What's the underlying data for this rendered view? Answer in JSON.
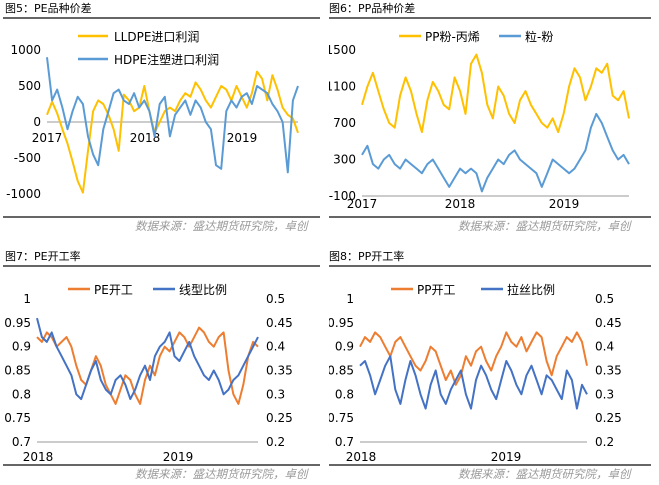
{
  "source_text": "数据来源：盛达期货研究院，卓创",
  "charts": [
    {
      "title": "图5：PE品种价差",
      "chart_data": {
        "type": "line",
        "xticks": [
          "2017",
          "2018",
          "2019"
        ],
        "ylim": [
          -1000,
          1000
        ],
        "yticks": [
          "1000",
          "500",
          "0",
          "-500",
          "-1000"
        ],
        "legend_position": "top",
        "series": [
          {
            "name": "LLDPE进口利润",
            "color": "#FFC000",
            "values": [
              100,
              280,
              120,
              -100,
              -300,
              -550,
              -820,
              -980,
              -400,
              150,
              300,
              250,
              100,
              -100,
              -400,
              380,
              300,
              150,
              200,
              500,
              150,
              -150,
              0,
              150,
              200,
              150,
              300,
              400,
              350,
              550,
              450,
              300,
              200,
              350,
              500,
              450,
              300,
              500,
              350,
              200,
              400,
              700,
              600,
              300,
              650,
              450,
              200,
              100,
              50,
              -150
            ]
          },
          {
            "name": "HDPE注塑进口利润",
            "color": "#5B9BD5",
            "values": [
              900,
              300,
              450,
              200,
              -100,
              150,
              350,
              250,
              -200,
              -450,
              -600,
              -100,
              150,
              400,
              450,
              300,
              250,
              400,
              200,
              300,
              150,
              -200,
              250,
              350,
              -200,
              100,
              200,
              300,
              100,
              300,
              200,
              0,
              -100,
              -600,
              -650,
              150,
              300,
              200,
              350,
              400,
              250,
              500,
              450,
              400,
              250,
              150,
              0,
              -700,
              300,
              500
            ]
          }
        ]
      }
    },
    {
      "title": "图6：PP品种价差",
      "chart_data": {
        "type": "line",
        "xticks": [
          "2017",
          "2018",
          "2019"
        ],
        "ylim": [
          -100,
          1500
        ],
        "yticks": [
          "1500",
          "1100",
          "700",
          "300",
          "-100"
        ],
        "legend_position": "top",
        "series": [
          {
            "name": "PP粉-丙烯",
            "color": "#FFC000",
            "values": [
              900,
              1100,
              1250,
              1050,
              850,
              700,
              650,
              1000,
              1200,
              1050,
              800,
              600,
              950,
              1150,
              1050,
              900,
              850,
              1200,
              1050,
              800,
              1350,
              1450,
              1250,
              900,
              750,
              1100,
              1000,
              800,
              700,
              950,
              1050,
              900,
              800,
              700,
              650,
              750,
              600,
              800,
              1100,
              1300,
              1200,
              950,
              1100,
              1300,
              1250,
              1350,
              1000,
              950,
              1050,
              750
            ]
          },
          {
            "name": "粒-粉",
            "color": "#5B9BD5",
            "values": [
              350,
              450,
              250,
              200,
              300,
              350,
              250,
              200,
              300,
              250,
              200,
              150,
              250,
              300,
              200,
              100,
              0,
              100,
              200,
              150,
              200,
              150,
              -50,
              100,
              200,
              300,
              250,
              350,
              400,
              300,
              250,
              200,
              150,
              0,
              150,
              300,
              250,
              200,
              150,
              200,
              300,
              400,
              650,
              800,
              700,
              550,
              400,
              300,
              350,
              250
            ]
          }
        ]
      }
    },
    {
      "title": "图7：PE开工率",
      "chart_data": {
        "type": "line",
        "xticks": [
          "2018",
          "2019"
        ],
        "ylim": [
          0.7,
          1
        ],
        "yticks": [
          "1",
          "0.95",
          "0.9",
          "0.85",
          "0.8",
          "0.75",
          "0.7"
        ],
        "ylim_right": [
          0.2,
          0.5
        ],
        "yticks_right": [
          "0.5",
          "0.45",
          "0.4",
          "0.35",
          "0.3",
          "0.25",
          "0.2"
        ],
        "legend_position": "top",
        "series": [
          {
            "name": "PE开工",
            "color": "#ED7D31",
            "axis": "left",
            "values": [
              0.92,
              0.91,
              0.93,
              0.92,
              0.9,
              0.91,
              0.92,
              0.9,
              0.86,
              0.83,
              0.82,
              0.85,
              0.88,
              0.86,
              0.82,
              0.8,
              0.78,
              0.81,
              0.84,
              0.83,
              0.8,
              0.78,
              0.83,
              0.86,
              0.84,
              0.88,
              0.9,
              0.89,
              0.91,
              0.93,
              0.92,
              0.9,
              0.92,
              0.94,
              0.93,
              0.91,
              0.9,
              0.92,
              0.93,
              0.85,
              0.8,
              0.78,
              0.82,
              0.88,
              0.91,
              0.9
            ]
          },
          {
            "name": "线型比例",
            "color": "#4472C4",
            "axis": "right",
            "values": [
              0.46,
              0.42,
              0.41,
              0.43,
              0.4,
              0.38,
              0.36,
              0.34,
              0.3,
              0.29,
              0.32,
              0.35,
              0.37,
              0.33,
              0.31,
              0.3,
              0.33,
              0.34,
              0.32,
              0.29,
              0.31,
              0.34,
              0.36,
              0.33,
              0.38,
              0.4,
              0.41,
              0.43,
              0.38,
              0.37,
              0.39,
              0.41,
              0.38,
              0.36,
              0.34,
              0.33,
              0.35,
              0.33,
              0.3,
              0.31,
              0.33,
              0.34,
              0.36,
              0.38,
              0.4,
              0.42
            ]
          }
        ]
      }
    },
    {
      "title": "图8：PP开工率",
      "chart_data": {
        "type": "line",
        "xticks": [
          "2018",
          "2019"
        ],
        "ylim": [
          0.7,
          1
        ],
        "yticks": [
          "1",
          "0.95",
          "0.9",
          "0.85",
          "0.8",
          "0.75",
          "0.7"
        ],
        "ylim_right": [
          0.2,
          0.5
        ],
        "yticks_right": [
          "0.5",
          "0.45",
          "0.4",
          "0.35",
          "0.3",
          "0.25",
          "0.2"
        ],
        "legend_position": "top",
        "series": [
          {
            "name": "PP开工",
            "color": "#ED7D31",
            "axis": "left",
            "values": [
              0.9,
              0.92,
              0.91,
              0.93,
              0.92,
              0.9,
              0.88,
              0.91,
              0.92,
              0.9,
              0.88,
              0.86,
              0.85,
              0.87,
              0.9,
              0.89,
              0.86,
              0.83,
              0.85,
              0.82,
              0.84,
              0.88,
              0.86,
              0.89,
              0.9,
              0.87,
              0.85,
              0.88,
              0.9,
              0.93,
              0.91,
              0.9,
              0.92,
              0.89,
              0.91,
              0.93,
              0.92,
              0.87,
              0.84,
              0.88,
              0.9,
              0.92,
              0.91,
              0.93,
              0.91,
              0.86
            ]
          },
          {
            "name": "拉丝比例",
            "color": "#4472C4",
            "axis": "right",
            "values": [
              0.36,
              0.37,
              0.34,
              0.3,
              0.33,
              0.36,
              0.38,
              0.31,
              0.28,
              0.33,
              0.37,
              0.34,
              0.3,
              0.27,
              0.32,
              0.35,
              0.3,
              0.28,
              0.31,
              0.33,
              0.35,
              0.3,
              0.27,
              0.33,
              0.36,
              0.34,
              0.31,
              0.29,
              0.33,
              0.37,
              0.35,
              0.32,
              0.3,
              0.34,
              0.36,
              0.33,
              0.3,
              0.34,
              0.33,
              0.31,
              0.29,
              0.35,
              0.33,
              0.27,
              0.32,
              0.3
            ]
          }
        ]
      }
    }
  ]
}
